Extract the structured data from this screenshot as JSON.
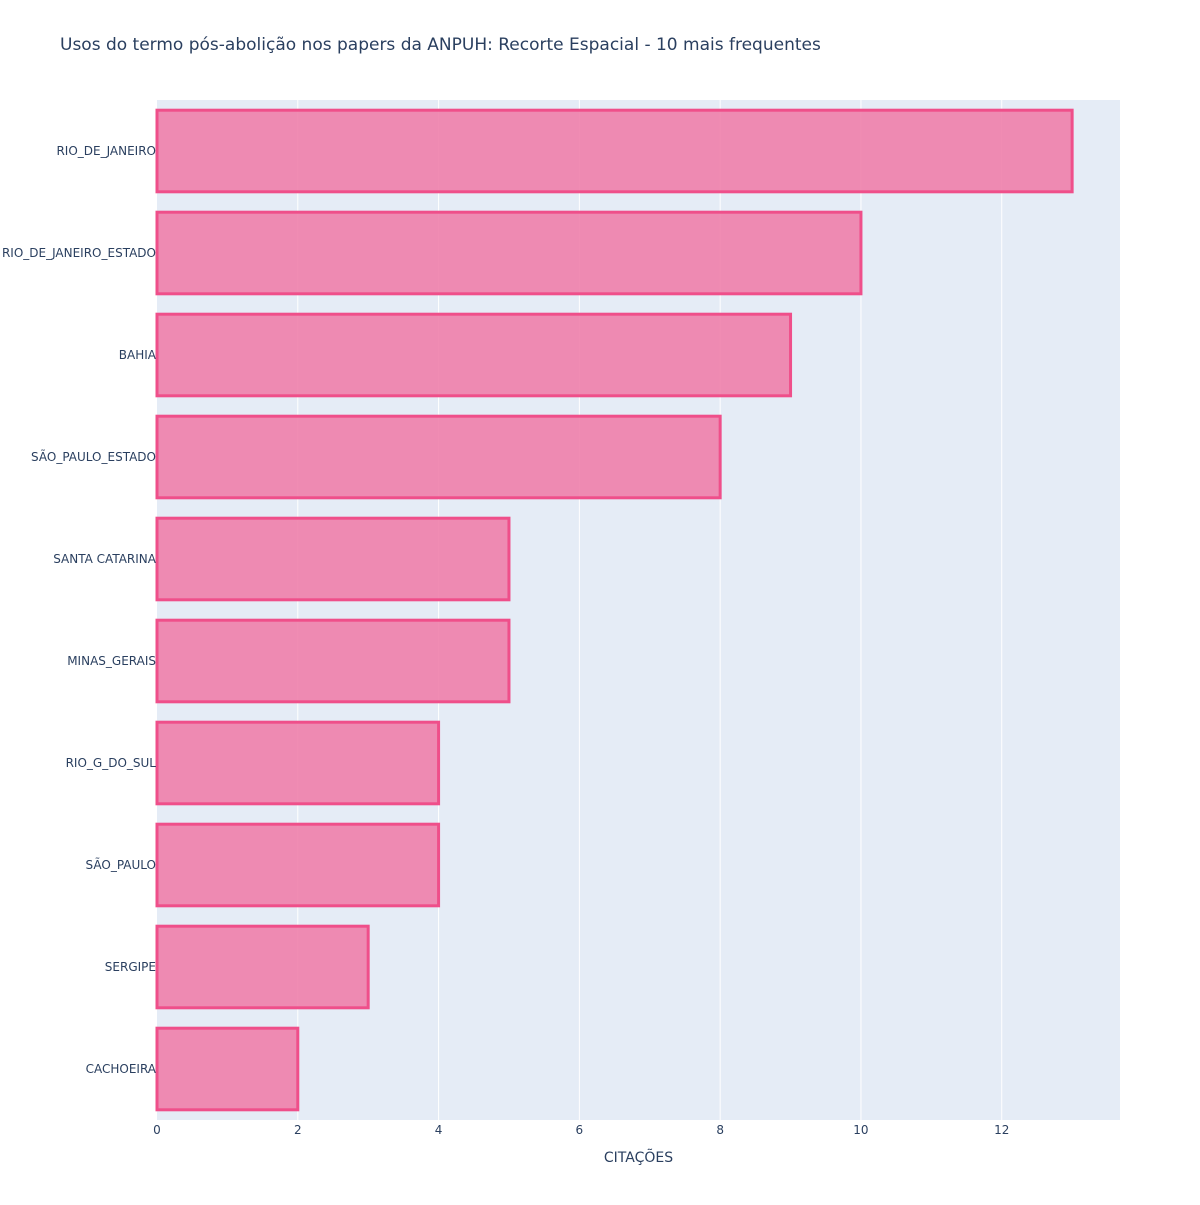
{
  "chart_data": {
    "type": "bar",
    "orientation": "horizontal",
    "title": "Usos do termo pós-abolição nos papers da ANPUH: Recorte Espacial - 10 mais frequentes",
    "xlabel": "CITAÇÕES",
    "ylabel": "",
    "categories": [
      "RIO_DE_JANEIRO",
      "RIO_DE_JANEIRO_ESTADO",
      "BAHIA",
      "SÃO_PAULO_ESTADO",
      "SANTA CATARINA",
      "MINAS_GERAIS",
      "RIO_G_DO_SUL",
      "SÃO_PAULO",
      "SERGIPE",
      "CACHOEIRA"
    ],
    "values": [
      13,
      10,
      9,
      8,
      5,
      5,
      4,
      4,
      3,
      2
    ],
    "xlim": [
      0,
      13.68
    ],
    "xticks": [
      0,
      2,
      4,
      6,
      8,
      10,
      12
    ],
    "grid": true,
    "legend": "none",
    "colors": {
      "bar_fill": "#ee7fab",
      "bar_stroke": "#ef4f8a",
      "plot_bg": "#e5ecf6",
      "grid": "#ffffff",
      "text": "#2a3f5f"
    }
  }
}
